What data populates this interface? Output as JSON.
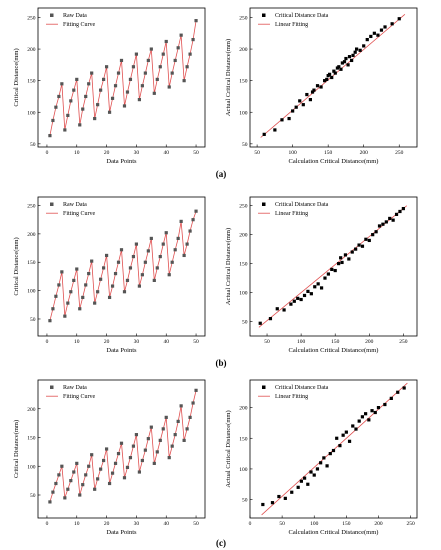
{
  "captions": [
    "(a)",
    "(b)",
    "(c)"
  ],
  "chart_data": [
    {
      "type": "scatter",
      "panel": "a-left",
      "xlabel": "Data Points",
      "ylabel": "Critical Distance(mm)",
      "xlim": [
        -3,
        53
      ],
      "ylim": [
        45,
        265
      ],
      "xticks": [
        0,
        10,
        20,
        30,
        40,
        50
      ],
      "yticks": [
        50,
        100,
        150,
        200,
        250
      ],
      "legend_position": "top-left",
      "series": [
        {
          "name": "Raw Data",
          "kind": "points",
          "color": "#555555",
          "x": [
            1,
            2,
            3,
            4,
            5,
            6,
            7,
            8,
            9,
            10,
            11,
            12,
            13,
            14,
            15,
            16,
            17,
            18,
            19,
            20,
            21,
            22,
            23,
            24,
            25,
            26,
            27,
            28,
            29,
            30,
            31,
            32,
            33,
            34,
            35,
            36,
            37,
            38,
            39,
            40,
            41,
            42,
            43,
            44,
            45,
            46,
            47,
            48,
            49,
            50
          ],
          "y": [
            63,
            87,
            108,
            125,
            145,
            72,
            95,
            118,
            135,
            152,
            80,
            105,
            125,
            145,
            162,
            90,
            112,
            135,
            152,
            172,
            100,
            122,
            142,
            162,
            182,
            110,
            132,
            152,
            172,
            192,
            120,
            142,
            162,
            182,
            200,
            130,
            152,
            172,
            192,
            212,
            140,
            162,
            182,
            202,
            222,
            150,
            172,
            192,
            215,
            245
          ]
        },
        {
          "name": "Fitting Curve",
          "kind": "line",
          "color": "#e05050",
          "x": [
            1,
            2,
            3,
            4,
            5,
            6,
            7,
            8,
            9,
            10,
            11,
            12,
            13,
            14,
            15,
            16,
            17,
            18,
            19,
            20,
            21,
            22,
            23,
            24,
            25,
            26,
            27,
            28,
            29,
            30,
            31,
            32,
            33,
            34,
            35,
            36,
            37,
            38,
            39,
            40,
            41,
            42,
            43,
            44,
            45,
            46,
            47,
            48,
            49,
            50
          ],
          "y": [
            63,
            87,
            108,
            125,
            145,
            72,
            95,
            118,
            135,
            152,
            80,
            105,
            125,
            145,
            162,
            90,
            112,
            135,
            152,
            172,
            100,
            122,
            142,
            162,
            182,
            110,
            132,
            152,
            172,
            192,
            120,
            142,
            162,
            182,
            200,
            130,
            152,
            172,
            192,
            212,
            140,
            162,
            182,
            202,
            222,
            150,
            172,
            192,
            215,
            245
          ]
        }
      ]
    },
    {
      "type": "scatter",
      "panel": "a-right",
      "xlabel": "Calculation Critical Distance(mm)",
      "ylabel": "Actual Critical Distance(mm)",
      "xlim": [
        40,
        275
      ],
      "ylim": [
        45,
        265
      ],
      "xticks": [
        50,
        100,
        150,
        200,
        250
      ],
      "yticks": [
        50,
        100,
        150,
        200,
        250
      ],
      "legend_position": "top-left",
      "series": [
        {
          "name": "Critical Distance Data",
          "kind": "points",
          "color": "#000000",
          "x": [
            60,
            75,
            85,
            95,
            100,
            105,
            110,
            115,
            120,
            125,
            128,
            130,
            135,
            140,
            145,
            148,
            150,
            152,
            155,
            158,
            160,
            163,
            165,
            168,
            170,
            173,
            175,
            178,
            180,
            183,
            185,
            188,
            190,
            195,
            200,
            205,
            210,
            215,
            220,
            225,
            230,
            240,
            250
          ],
          "y": [
            65,
            72,
            88,
            90,
            102,
            108,
            118,
            112,
            128,
            120,
            132,
            135,
            142,
            140,
            150,
            152,
            158,
            160,
            155,
            165,
            162,
            170,
            172,
            168,
            178,
            180,
            185,
            175,
            188,
            182,
            190,
            195,
            200,
            198,
            205,
            215,
            220,
            225,
            222,
            230,
            235,
            240,
            248
          ]
        },
        {
          "name": "Linear Fitting",
          "kind": "line",
          "color": "#e05050",
          "x": [
            55,
            258
          ],
          "y": [
            60,
            255
          ]
        }
      ]
    },
    {
      "type": "scatter",
      "panel": "b-left",
      "xlabel": "Data Points",
      "ylabel": "Critical Distance(mm)",
      "xlim": [
        -3,
        53
      ],
      "ylim": [
        20,
        265
      ],
      "xticks": [
        0,
        10,
        20,
        30,
        40,
        50
      ],
      "yticks": [
        50,
        100,
        150,
        200,
        250
      ],
      "legend_position": "top-left",
      "series": [
        {
          "name": "Raw Data",
          "kind": "points",
          "color": "#555555",
          "x": [
            1,
            2,
            3,
            4,
            5,
            6,
            7,
            8,
            9,
            10,
            11,
            12,
            13,
            14,
            15,
            16,
            17,
            18,
            19,
            20,
            21,
            22,
            23,
            24,
            25,
            26,
            27,
            28,
            29,
            30,
            31,
            32,
            33,
            34,
            35,
            36,
            37,
            38,
            39,
            40,
            41,
            42,
            43,
            44,
            45,
            46,
            47,
            48,
            49,
            50
          ],
          "y": [
            47,
            68,
            90,
            110,
            133,
            55,
            78,
            98,
            118,
            138,
            68,
            88,
            110,
            130,
            152,
            78,
            98,
            120,
            140,
            162,
            88,
            108,
            130,
            150,
            172,
            98,
            118,
            140,
            160,
            182,
            108,
            128,
            150,
            170,
            192,
            118,
            140,
            160,
            182,
            202,
            128,
            150,
            172,
            192,
            222,
            162,
            182,
            205,
            225,
            240
          ]
        },
        {
          "name": "Fitting Curve",
          "kind": "line",
          "color": "#e05050",
          "x": [
            1,
            2,
            3,
            4,
            5,
            6,
            7,
            8,
            9,
            10,
            11,
            12,
            13,
            14,
            15,
            16,
            17,
            18,
            19,
            20,
            21,
            22,
            23,
            24,
            25,
            26,
            27,
            28,
            29,
            30,
            31,
            32,
            33,
            34,
            35,
            36,
            37,
            38,
            39,
            40,
            41,
            42,
            43,
            44,
            45,
            46,
            47,
            48,
            49,
            50
          ],
          "y": [
            47,
            68,
            90,
            110,
            133,
            55,
            78,
            98,
            118,
            138,
            68,
            88,
            110,
            130,
            152,
            78,
            98,
            120,
            140,
            162,
            88,
            108,
            130,
            150,
            172,
            98,
            118,
            140,
            160,
            182,
            108,
            128,
            150,
            170,
            192,
            118,
            140,
            160,
            182,
            202,
            128,
            150,
            172,
            192,
            222,
            162,
            182,
            205,
            225,
            240
          ]
        }
      ]
    },
    {
      "type": "scatter",
      "panel": "b-right",
      "xlabel": "Calculation Critical Distance(mm)",
      "ylabel": "Actual Critical Distance(mm)",
      "xlim": [
        25,
        270
      ],
      "ylim": [
        25,
        265
      ],
      "xticks": [
        50,
        100,
        150,
        200,
        250
      ],
      "yticks": [
        50,
        100,
        150,
        200,
        250
      ],
      "legend_position": "top-left",
      "series": [
        {
          "name": "Critical Distance Data",
          "kind": "points",
          "color": "#000000",
          "x": [
            40,
            55,
            65,
            75,
            85,
            90,
            95,
            100,
            105,
            110,
            115,
            120,
            125,
            130,
            135,
            140,
            145,
            150,
            155,
            158,
            160,
            165,
            170,
            175,
            180,
            185,
            190,
            195,
            200,
            205,
            210,
            215,
            220,
            225,
            230,
            235,
            240,
            245,
            250
          ],
          "y": [
            47,
            55,
            72,
            70,
            80,
            85,
            90,
            88,
            95,
            102,
            98,
            110,
            115,
            108,
            125,
            132,
            140,
            138,
            150,
            160,
            152,
            165,
            158,
            170,
            175,
            182,
            180,
            192,
            190,
            200,
            205,
            215,
            218,
            222,
            228,
            225,
            235,
            240,
            245
          ]
        },
        {
          "name": "Linear Fitting",
          "kind": "line",
          "color": "#e05050",
          "x": [
            38,
            255
          ],
          "y": [
            40,
            250
          ]
        }
      ]
    },
    {
      "type": "scatter",
      "panel": "c-left",
      "xlabel": "Data Points",
      "ylabel": "Critical Distance(mm)",
      "xlim": [
        -3,
        53
      ],
      "ylim": [
        10,
        250
      ],
      "xticks": [
        0,
        10,
        20,
        30,
        40,
        50
      ],
      "yticks": [
        50,
        100,
        150,
        200
      ],
      "legend_position": "top-left",
      "series": [
        {
          "name": "Raw Data",
          "kind": "points",
          "color": "#555555",
          "x": [
            1,
            2,
            3,
            4,
            5,
            6,
            7,
            8,
            9,
            10,
            11,
            12,
            13,
            14,
            15,
            16,
            17,
            18,
            19,
            20,
            21,
            22,
            23,
            24,
            25,
            26,
            27,
            28,
            29,
            30,
            31,
            32,
            33,
            34,
            35,
            36,
            37,
            38,
            39,
            40,
            41,
            42,
            43,
            44,
            45,
            46,
            47,
            48,
            49,
            50
          ],
          "y": [
            38,
            55,
            70,
            85,
            100,
            45,
            60,
            75,
            90,
            105,
            50,
            68,
            85,
            100,
            120,
            60,
            78,
            95,
            110,
            130,
            70,
            88,
            105,
            122,
            140,
            80,
            98,
            115,
            135,
            155,
            90,
            110,
            128,
            148,
            168,
            105,
            125,
            145,
            165,
            185,
            115,
            135,
            155,
            178,
            205,
            145,
            165,
            185,
            210,
            232
          ]
        },
        {
          "name": "Fitting Curve",
          "kind": "line",
          "color": "#e05050",
          "x": [
            1,
            2,
            3,
            4,
            5,
            6,
            7,
            8,
            9,
            10,
            11,
            12,
            13,
            14,
            15,
            16,
            17,
            18,
            19,
            20,
            21,
            22,
            23,
            24,
            25,
            26,
            27,
            28,
            29,
            30,
            31,
            32,
            33,
            34,
            35,
            36,
            37,
            38,
            39,
            40,
            41,
            42,
            43,
            44,
            45,
            46,
            47,
            48,
            49,
            50
          ],
          "y": [
            38,
            55,
            70,
            85,
            100,
            45,
            60,
            75,
            90,
            105,
            50,
            68,
            85,
            100,
            120,
            60,
            78,
            95,
            110,
            130,
            70,
            88,
            105,
            122,
            140,
            80,
            98,
            115,
            135,
            155,
            90,
            110,
            128,
            148,
            168,
            105,
            125,
            145,
            165,
            185,
            115,
            135,
            155,
            178,
            205,
            145,
            165,
            185,
            210,
            232
          ]
        }
      ]
    },
    {
      "type": "scatter",
      "panel": "c-right",
      "xlabel": "Calculation Critical Distance(mm)",
      "ylabel": "Actual Critical Distance(mm)",
      "xlim": [
        0,
        260
      ],
      "ylim": [
        20,
        245
      ],
      "xticks": [
        0,
        50,
        100,
        150,
        200,
        250
      ],
      "yticks": [
        50,
        100,
        150,
        200
      ],
      "legend_position": "top-left",
      "series": [
        {
          "name": "Critical Distance Data",
          "kind": "points",
          "color": "#000000",
          "x": [
            20,
            35,
            45,
            55,
            65,
            75,
            80,
            85,
            90,
            95,
            100,
            105,
            110,
            115,
            120,
            125,
            130,
            135,
            140,
            145,
            150,
            155,
            160,
            165,
            170,
            175,
            180,
            185,
            190,
            195,
            200,
            210,
            220,
            230,
            240
          ],
          "y": [
            42,
            45,
            55,
            52,
            62,
            70,
            80,
            85,
            75,
            95,
            90,
            100,
            110,
            118,
            105,
            125,
            130,
            150,
            138,
            155,
            160,
            145,
            170,
            165,
            178,
            185,
            190,
            180,
            195,
            192,
            200,
            205,
            215,
            225,
            232
          ]
        },
        {
          "name": "Linear Fitting",
          "kind": "line",
          "color": "#e05050",
          "x": [
            18,
            245
          ],
          "y": [
            25,
            240
          ]
        }
      ]
    }
  ]
}
